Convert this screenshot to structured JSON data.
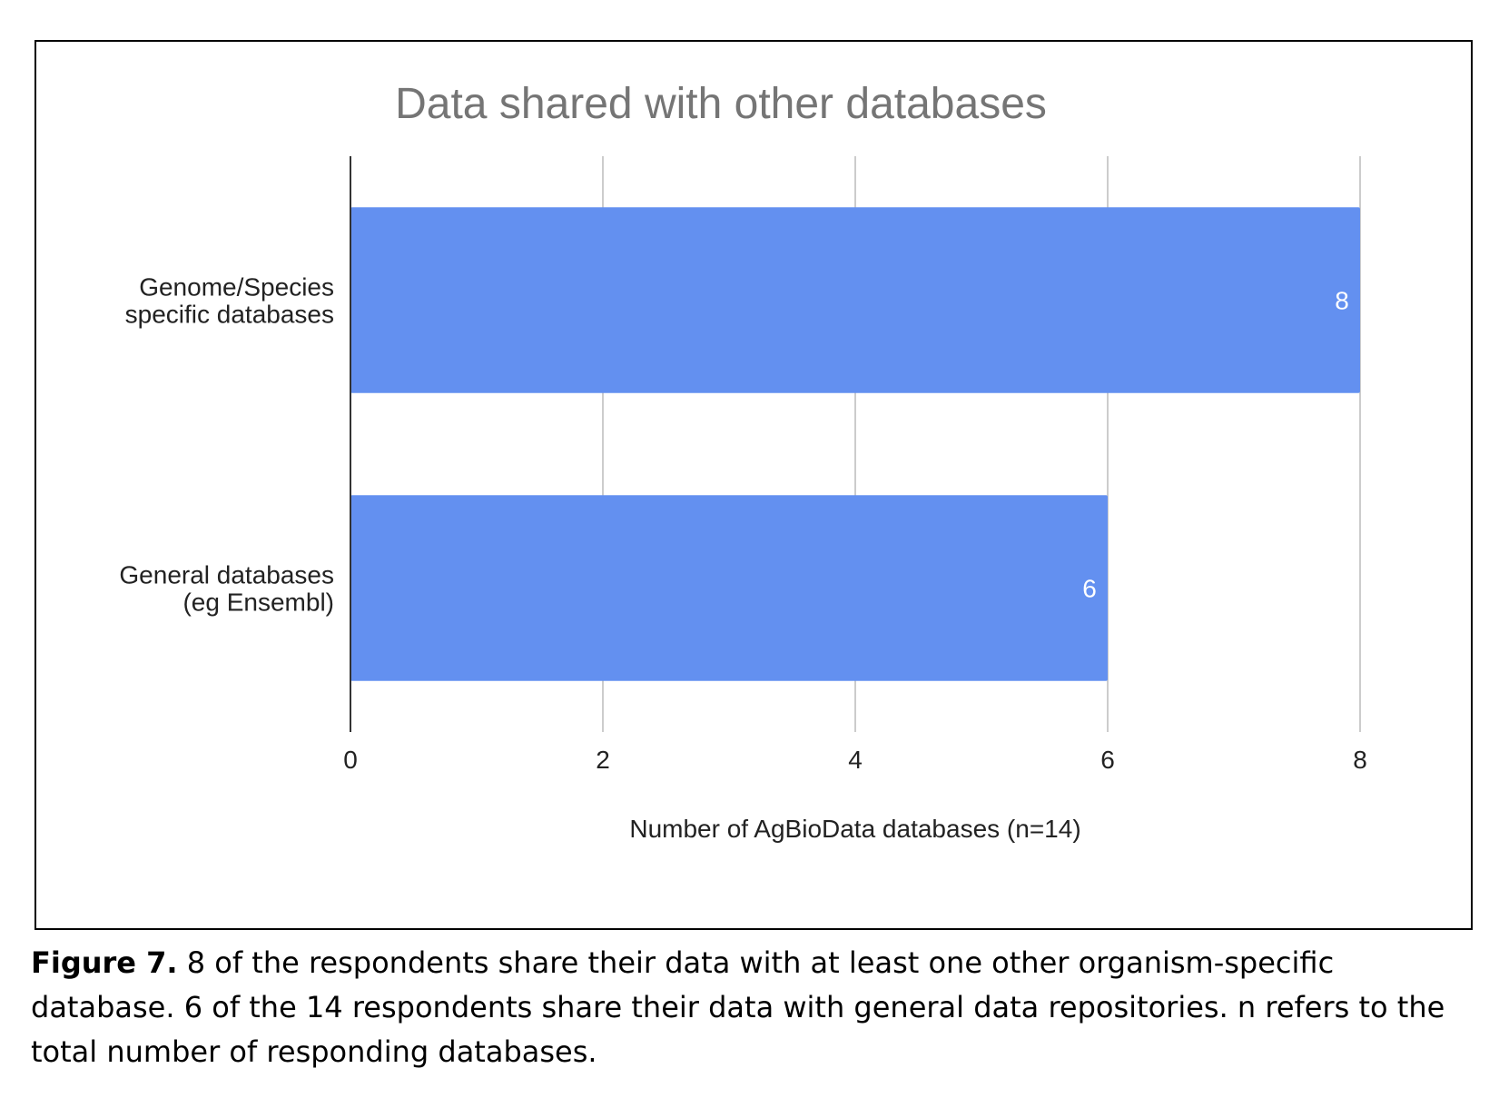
{
  "chart_data": {
    "type": "bar",
    "orientation": "horizontal",
    "title": "Data shared with other databases",
    "xlabel": "Number of AgBioData databases (n=14)",
    "ylabel": "",
    "categories": [
      [
        "Genome/Species",
        "specific databases"
      ],
      [
        "General databases",
        "(eg Ensembl)"
      ]
    ],
    "values": [
      8,
      6
    ],
    "data_labels": [
      "8",
      "6"
    ],
    "xlim": [
      0,
      8
    ],
    "x_ticks": [
      0,
      2,
      4,
      6,
      8
    ],
    "grid": true,
    "legend": false,
    "colors": {
      "bar": "#6390f0",
      "title": "#757575",
      "grid": "#cccccc",
      "axis": "#333333",
      "data_label": "#ffffff"
    }
  },
  "caption": {
    "label": "Figure 7.",
    "text": " 8 of the respondents share their data with at least one other organism-specific database. 6 of the 14 respondents share their data with general data repositories. n refers to the total number of responding databases."
  }
}
